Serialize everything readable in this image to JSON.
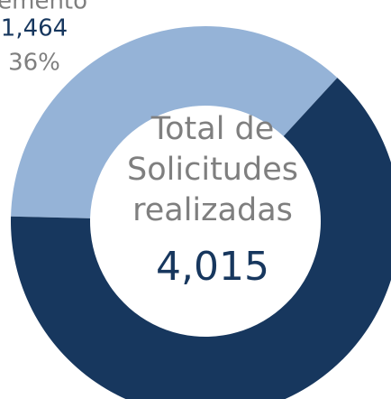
{
  "chart_data": {
    "type": "donut",
    "categories": [
      "Cemento",
      null
    ],
    "values": [
      1464,
      2551
    ],
    "value_labels": [
      "1,464",
      null
    ],
    "percent_labels": [
      "36%",
      null
    ],
    "colors": [
      "#95b3d7",
      "#17375e"
    ],
    "center_text": [
      "Total de",
      "Solicitudes",
      "realizadas"
    ],
    "total": 4015,
    "total_label": "4,015"
  }
}
